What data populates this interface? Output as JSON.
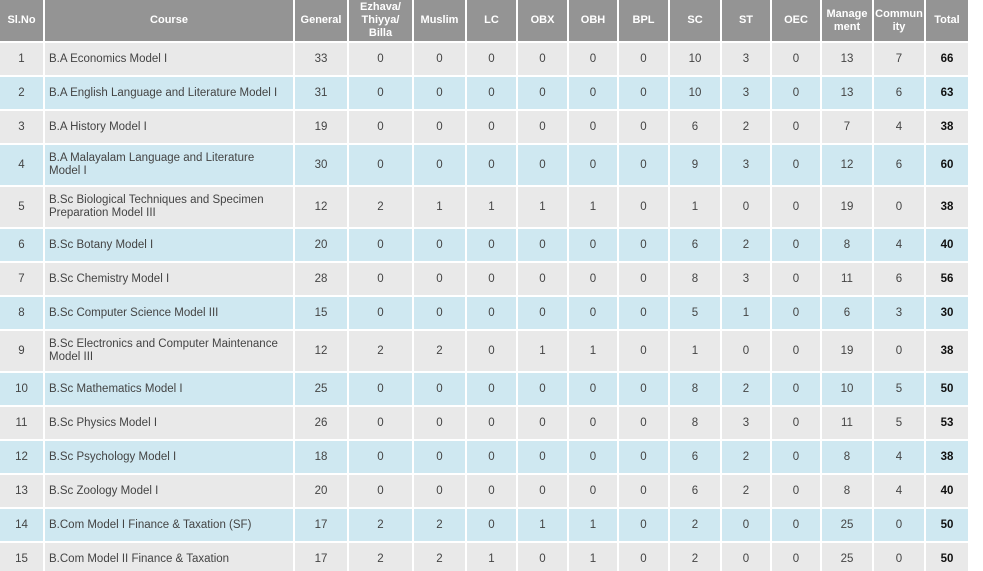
{
  "table": {
    "columns": [
      "Sl.No",
      "Course",
      "General",
      "Ezhava/ Thiyya/ Billa",
      "Muslim",
      "LC",
      "OBX",
      "OBH",
      "BPL",
      "SC",
      "ST",
      "OEC",
      "Management",
      "Community",
      "Total"
    ],
    "rows": [
      {
        "sl_no": "1",
        "course": "B.A Economics Model I",
        "values": [
          "33",
          "0",
          "0",
          "0",
          "0",
          "0",
          "0",
          "10",
          "3",
          "0",
          "13",
          "7"
        ],
        "total": "66"
      },
      {
        "sl_no": "2",
        "course": "B.A English Language and Literature Model I",
        "values": [
          "31",
          "0",
          "0",
          "0",
          "0",
          "0",
          "0",
          "10",
          "3",
          "0",
          "13",
          "6"
        ],
        "total": "63"
      },
      {
        "sl_no": "3",
        "course": "B.A History Model I",
        "values": [
          "19",
          "0",
          "0",
          "0",
          "0",
          "0",
          "0",
          "6",
          "2",
          "0",
          "7",
          "4"
        ],
        "total": "38"
      },
      {
        "sl_no": "4",
        "course": "B.A Malayalam Language and Literature Model I",
        "values": [
          "30",
          "0",
          "0",
          "0",
          "0",
          "0",
          "0",
          "9",
          "3",
          "0",
          "12",
          "6"
        ],
        "total": "60"
      },
      {
        "sl_no": "5",
        "course": "B.Sc Biological Techniques and Specimen Preparation Model III",
        "values": [
          "12",
          "2",
          "1",
          "1",
          "1",
          "1",
          "0",
          "1",
          "0",
          "0",
          "19",
          "0"
        ],
        "total": "38"
      },
      {
        "sl_no": "6",
        "course": "B.Sc Botany Model I",
        "values": [
          "20",
          "0",
          "0",
          "0",
          "0",
          "0",
          "0",
          "6",
          "2",
          "0",
          "8",
          "4"
        ],
        "total": "40"
      },
      {
        "sl_no": "7",
        "course": "B.Sc Chemistry Model I",
        "values": [
          "28",
          "0",
          "0",
          "0",
          "0",
          "0",
          "0",
          "8",
          "3",
          "0",
          "11",
          "6"
        ],
        "total": "56"
      },
      {
        "sl_no": "8",
        "course": "B.Sc Computer Science Model III",
        "values": [
          "15",
          "0",
          "0",
          "0",
          "0",
          "0",
          "0",
          "5",
          "1",
          "0",
          "6",
          "3"
        ],
        "total": "30"
      },
      {
        "sl_no": "9",
        "course": "B.Sc Electronics and Computer Maintenance Model III",
        "values": [
          "12",
          "2",
          "2",
          "0",
          "1",
          "1",
          "0",
          "1",
          "0",
          "0",
          "19",
          "0"
        ],
        "total": "38"
      },
      {
        "sl_no": "10",
        "course": "B.Sc Mathematics Model I",
        "values": [
          "25",
          "0",
          "0",
          "0",
          "0",
          "0",
          "0",
          "8",
          "2",
          "0",
          "10",
          "5"
        ],
        "total": "50"
      },
      {
        "sl_no": "11",
        "course": "B.Sc Physics Model I",
        "values": [
          "26",
          "0",
          "0",
          "0",
          "0",
          "0",
          "0",
          "8",
          "3",
          "0",
          "11",
          "5"
        ],
        "total": "53"
      },
      {
        "sl_no": "12",
        "course": "B.Sc Psychology Model I",
        "values": [
          "18",
          "0",
          "0",
          "0",
          "0",
          "0",
          "0",
          "6",
          "2",
          "0",
          "8",
          "4"
        ],
        "total": "38"
      },
      {
        "sl_no": "13",
        "course": "B.Sc Zoology Model I",
        "values": [
          "20",
          "0",
          "0",
          "0",
          "0",
          "0",
          "0",
          "6",
          "2",
          "0",
          "8",
          "4"
        ],
        "total": "40"
      },
      {
        "sl_no": "14",
        "course": "B.Com Model I Finance & Taxation (SF)",
        "values": [
          "17",
          "2",
          "2",
          "0",
          "1",
          "1",
          "0",
          "2",
          "0",
          "0",
          "25",
          "0"
        ],
        "total": "50"
      },
      {
        "sl_no": "15",
        "course": "B.Com Model II Finance & Taxation",
        "values": [
          "17",
          "2",
          "2",
          "1",
          "0",
          "1",
          "0",
          "2",
          "0",
          "0",
          "25",
          "0"
        ],
        "total": "50"
      }
    ]
  },
  "colors": {
    "header_bg": "#949494",
    "header_text": "#ffffff",
    "row_odd_bg": "#e9e9e9",
    "row_even_bg": "#cfe8f1",
    "body_text": "#444444",
    "total_text": "#111111",
    "page_bg": "#ffffff"
  }
}
